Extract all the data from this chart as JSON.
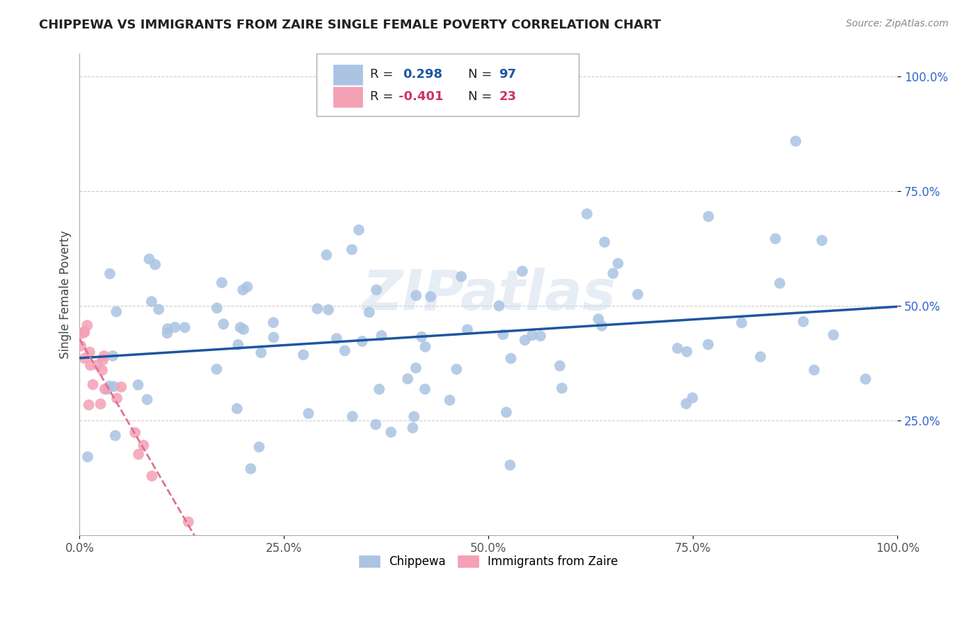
{
  "title": "CHIPPEWA VS IMMIGRANTS FROM ZAIRE SINGLE FEMALE POVERTY CORRELATION CHART",
  "source": "Source: ZipAtlas.com",
  "ylabel": "Single Female Poverty",
  "xlim": [
    0.0,
    1.0
  ],
  "ylim": [
    0.0,
    1.05
  ],
  "xtick_labels": [
    "0.0%",
    "25.0%",
    "50.0%",
    "75.0%",
    "100.0%"
  ],
  "xtick_vals": [
    0.0,
    0.25,
    0.5,
    0.75,
    1.0
  ],
  "ytick_labels": [
    "25.0%",
    "50.0%",
    "75.0%",
    "100.0%"
  ],
  "ytick_vals": [
    0.25,
    0.5,
    0.75,
    1.0
  ],
  "watermark": "ZIPatlas",
  "legend_r1": "R =  0.298",
  "legend_n1": "N = 97",
  "legend_r2": "R = -0.401",
  "legend_n2": "N = 23",
  "chippewa_color": "#aac4e2",
  "zaire_color": "#f4a0b5",
  "trend_blue": "#1e56a0",
  "trend_pink": "#e07090",
  "background": "#ffffff",
  "grid_color": "#cccccc",
  "ytick_color": "#3366cc",
  "xtick_color": "#555555",
  "title_color": "#222222",
  "source_color": "#888888",
  "ylabel_color": "#444444"
}
